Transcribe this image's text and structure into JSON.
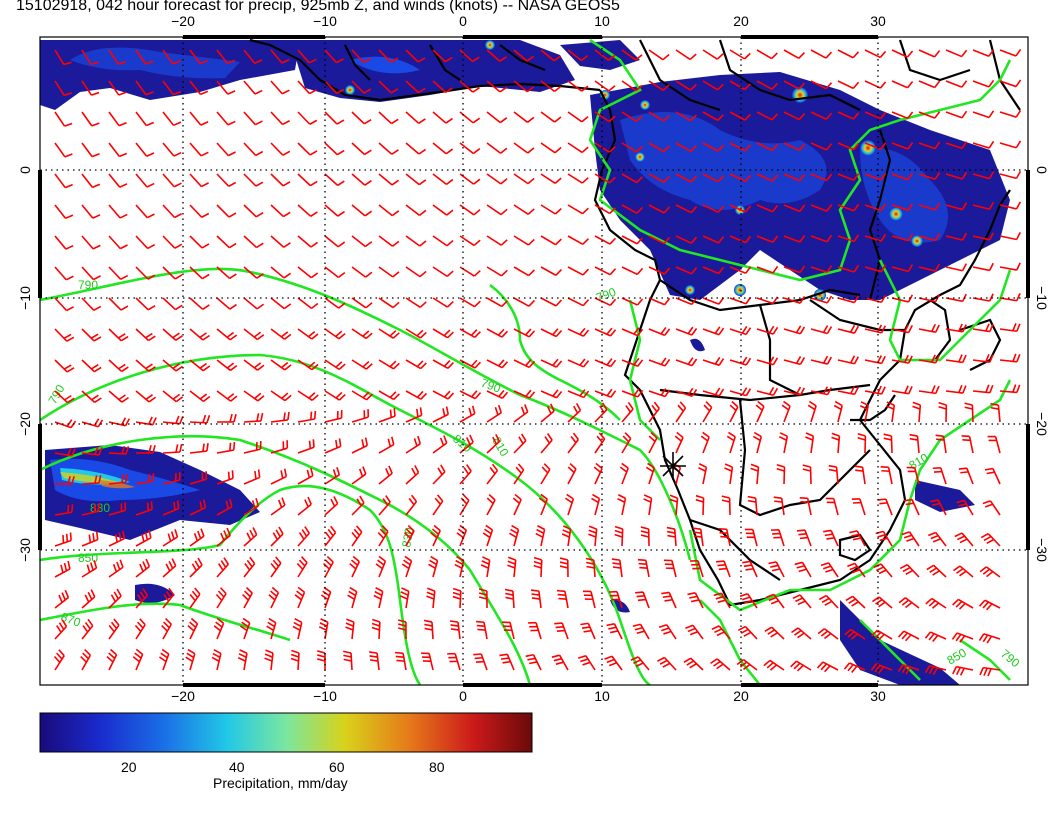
{
  "title": "15102918, 042 hour forecast for precip, 925mb Z, and winds (knots) -- NASA GEOS5",
  "map": {
    "lon_ticks": [
      "−20",
      "−10",
      "0",
      "10",
      "20",
      "30"
    ],
    "lat_ticks": [
      "0",
      "−10",
      "−20",
      "−30"
    ],
    "contour_labels": [
      "790",
      "790",
      "790",
      "810",
      "810",
      "830",
      "830",
      "850",
      "790",
      "810",
      "870",
      "850",
      "790"
    ],
    "colors": {
      "wind_barbs": "#ff0000",
      "contours": "#22e622",
      "coastlines": "#000000",
      "gridlines": "#000000"
    },
    "marker": "asterisk"
  },
  "colorbar": {
    "title": "Precipitation, mm/day",
    "tick_labels": [
      "20",
      "40",
      "60",
      "80"
    ],
    "colors": [
      "#1a0a7a",
      "#1a2acc",
      "#1a6ee6",
      "#22c8e6",
      "#7ae6a0",
      "#d8d21a",
      "#e67a1a",
      "#cc1a1a",
      "#6a0a0a"
    ]
  }
}
